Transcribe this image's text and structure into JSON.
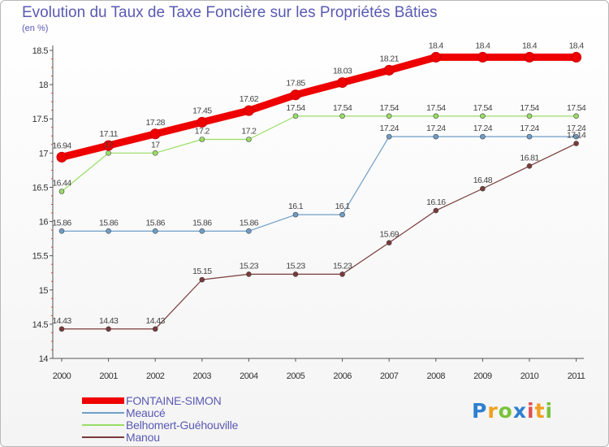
{
  "header": {
    "title": "Evolution du Taux de Taxe Foncière sur les Propriétés Bâties",
    "unit": "(en %)"
  },
  "chart_data": {
    "type": "line",
    "title": "Evolution du Taux de Taxe Foncière sur les Propriétés Bâties",
    "ylabel": "(en %)",
    "xlabel": "",
    "categories": [
      "2000",
      "2001",
      "2002",
      "2003",
      "2004",
      "2005",
      "2006",
      "2007",
      "2008",
      "2009",
      "2010",
      "2011"
    ],
    "ylim": [
      14,
      18.5
    ],
    "yticks": [
      "14",
      "14.5",
      "15",
      "15.5",
      "16",
      "16.5",
      "17",
      "17.5",
      "18",
      "18.5"
    ],
    "grid": false,
    "legend_position": "bottom-left",
    "series": [
      {
        "name": "FONTAINE-SIMON",
        "color": "#ee0000",
        "values": [
          16.94,
          17.11,
          17.28,
          17.45,
          17.62,
          17.85,
          18.03,
          18.21,
          18.4,
          18.4,
          18.4,
          18.4
        ],
        "labels": [
          "16.94",
          "17.11",
          "17.28",
          "17.45",
          "17.62",
          "17.85",
          "18.03",
          "18.21",
          "18.4",
          "18.4",
          "18.4",
          "18.4"
        ]
      },
      {
        "name": "Meaucé",
        "color": "#6e9ec8",
        "values": [
          15.86,
          15.86,
          15.86,
          15.86,
          15.86,
          16.1,
          16.1,
          17.24,
          17.24,
          17.24,
          17.24,
          17.24
        ],
        "labels": [
          "15.86",
          "15.86",
          "15.86",
          "15.86",
          "15.86",
          "16.1",
          "16.1",
          "17.24",
          "17.24",
          "17.24",
          "17.24",
          "17.24"
        ]
      },
      {
        "name": "Belhomert-Guéhouville",
        "color": "#99dd66",
        "values": [
          16.44,
          17,
          17,
          17.2,
          17.2,
          17.54,
          17.54,
          17.54,
          17.54,
          17.54,
          17.54,
          17.54
        ],
        "labels": [
          "16.44",
          "17",
          "17",
          "17.2",
          "17.2",
          "17.54",
          "17.54",
          "17.54",
          "17.54",
          "17.54",
          "17.54",
          "17.54"
        ]
      },
      {
        "name": "Manou",
        "color": "#7a3a3a",
        "values": [
          14.43,
          14.43,
          14.43,
          15.15,
          15.23,
          15.23,
          15.23,
          15.69,
          16.16,
          16.48,
          16.81,
          17.14
        ],
        "labels": [
          "14.43",
          "14.43",
          "14.43",
          "15.15",
          "15.23",
          "15.23",
          "15.23",
          "15.69",
          "16.16",
          "16.48",
          "16.81",
          "17.14"
        ]
      }
    ]
  },
  "logo": {
    "letters": [
      "P",
      "r",
      "o",
      "x",
      "i",
      "t",
      "i"
    ],
    "colors": [
      "#2e7fd0",
      "#f0a020",
      "#7ac23a",
      "#2e7fd0",
      "#e05050",
      "#f0a020",
      "#7ac23a"
    ]
  }
}
